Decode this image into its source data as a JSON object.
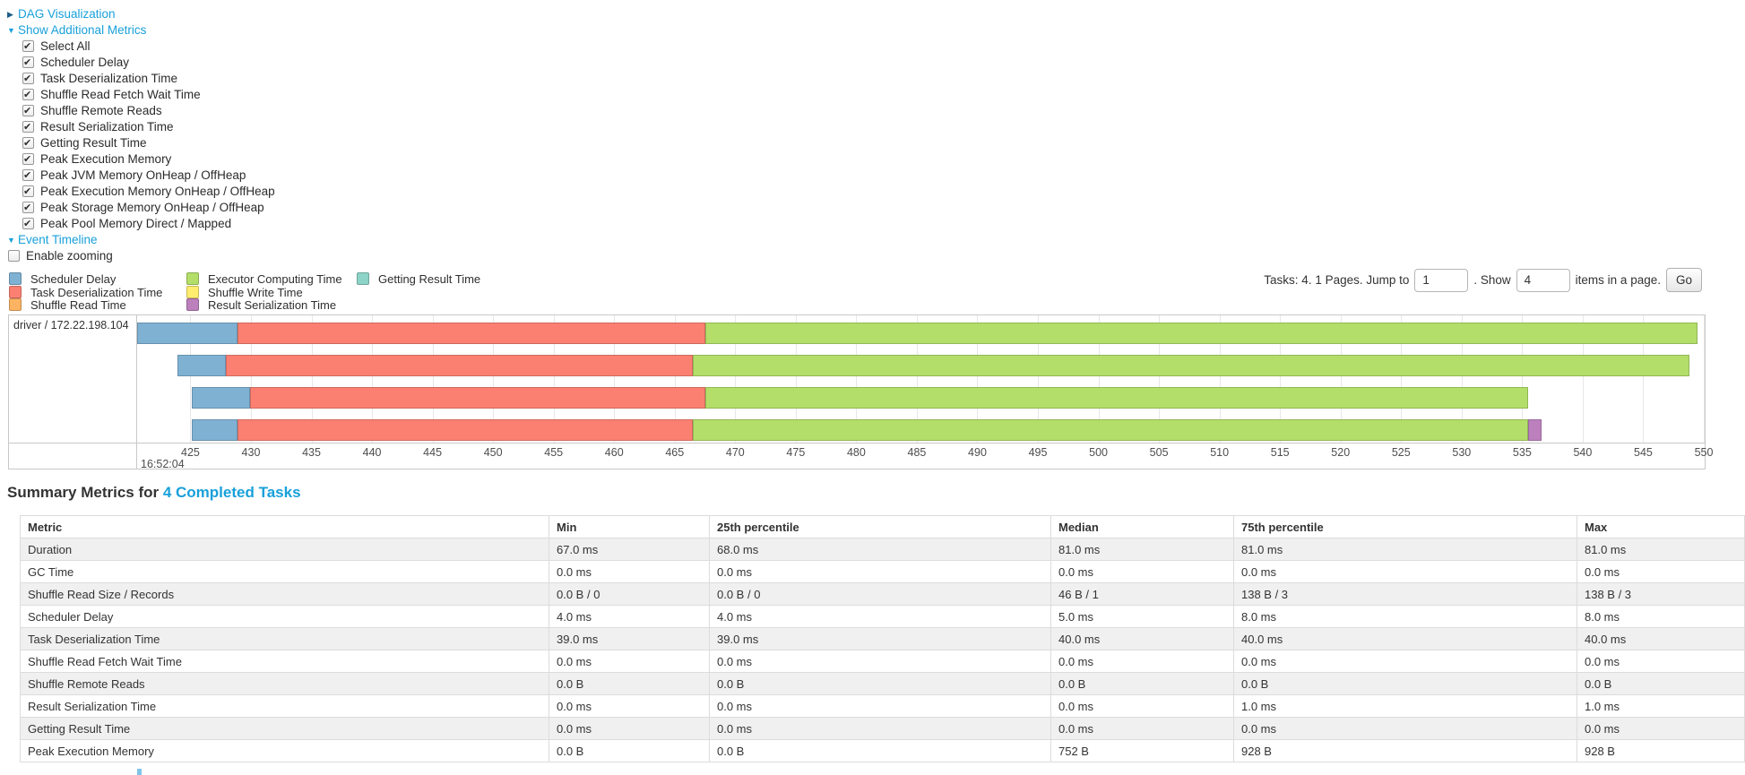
{
  "toggles": {
    "dag": {
      "label": "DAG Visualization",
      "state": "collapsed"
    },
    "additional_metrics": {
      "label": "Show Additional Metrics",
      "state": "expanded"
    },
    "metric_checkboxes": [
      {
        "label": "Select All",
        "checked": true
      },
      {
        "label": "Scheduler Delay",
        "checked": true
      },
      {
        "label": "Task Deserialization Time",
        "checked": true
      },
      {
        "label": "Shuffle Read Fetch Wait Time",
        "checked": true
      },
      {
        "label": "Shuffle Remote Reads",
        "checked": true
      },
      {
        "label": "Result Serialization Time",
        "checked": true
      },
      {
        "label": "Getting Result Time",
        "checked": true
      },
      {
        "label": "Peak Execution Memory",
        "checked": true
      },
      {
        "label": "Peak JVM Memory OnHeap / OffHeap",
        "checked": true
      },
      {
        "label": "Peak Execution Memory OnHeap / OffHeap",
        "checked": true
      },
      {
        "label": "Peak Storage Memory OnHeap / OffHeap",
        "checked": true
      },
      {
        "label": "Peak Pool Memory Direct / Mapped",
        "checked": true
      }
    ],
    "event_timeline": {
      "label": "Event Timeline",
      "state": "expanded"
    },
    "enable_zooming": {
      "label": "Enable zooming",
      "checked": false
    }
  },
  "colors": {
    "scheduler_delay": "#7FB1D3",
    "task_deserialization": "#FB8072",
    "shuffle_read": "#FDB462",
    "executor_computing": "#B3DE69",
    "shuffle_write": "#FFED6F",
    "getting_result": "#8DD3C7",
    "result_serialization": "#BC80BD",
    "link": "#18a0da"
  },
  "legend": {
    "columns": [
      [
        {
          "key": "scheduler_delay",
          "label": "Scheduler Delay"
        },
        {
          "key": "task_deserialization",
          "label": "Task Deserialization Time"
        },
        {
          "key": "shuffle_read",
          "label": "Shuffle Read Time"
        }
      ],
      [
        {
          "key": "executor_computing",
          "label": "Executor Computing Time"
        },
        {
          "key": "shuffle_write",
          "label": "Shuffle Write Time"
        },
        {
          "key": "result_serialization",
          "label": "Result Serialization Time"
        }
      ],
      [
        {
          "key": "getting_result",
          "label": "Getting Result Time"
        }
      ]
    ]
  },
  "pagination": {
    "prefix": "Tasks: 4. 1 Pages. Jump to",
    "jump_value": "1",
    "mid": ". Show",
    "show_value": "4",
    "suffix": "items in a page.",
    "go_label": "Go"
  },
  "chart_data": {
    "type": "timeline",
    "group_label": "driver / 172.22.198.104",
    "axis": {
      "min": 420.6,
      "max": 550,
      "tick_start": 425,
      "tick_step": 5,
      "tick_end": 550,
      "time_label": "16:52:04"
    },
    "tasks": [
      {
        "segments": [
          {
            "key": "scheduler_delay",
            "start": 420.6,
            "end": 428.9
          },
          {
            "key": "task_deserialization",
            "start": 428.9,
            "end": 467.5
          },
          {
            "key": "executor_computing",
            "start": 467.5,
            "end": 549.5
          }
        ]
      },
      {
        "segments": [
          {
            "key": "scheduler_delay",
            "start": 423.9,
            "end": 427.9
          },
          {
            "key": "task_deserialization",
            "start": 427.9,
            "end": 466.5
          },
          {
            "key": "executor_computing",
            "start": 466.5,
            "end": 548.8
          }
        ]
      },
      {
        "segments": [
          {
            "key": "scheduler_delay",
            "start": 425.1,
            "end": 429.9
          },
          {
            "key": "task_deserialization",
            "start": 429.9,
            "end": 467.5
          },
          {
            "key": "executor_computing",
            "start": 467.5,
            "end": 535.5
          }
        ]
      },
      {
        "segments": [
          {
            "key": "scheduler_delay",
            "start": 425.1,
            "end": 428.9
          },
          {
            "key": "task_deserialization",
            "start": 428.9,
            "end": 466.5
          },
          {
            "key": "executor_computing",
            "start": 466.5,
            "end": 535.5
          },
          {
            "key": "result_serialization",
            "start": 535.5,
            "end": 536.6
          }
        ]
      }
    ]
  },
  "summary": {
    "title_prefix": "Summary Metrics for ",
    "title_link": "4 Completed Tasks",
    "table": {
      "columns": [
        "Metric",
        "Min",
        "25th percentile",
        "Median",
        "75th percentile",
        "Max"
      ],
      "rows": [
        [
          "Duration",
          "67.0 ms",
          "68.0 ms",
          "81.0 ms",
          "81.0 ms",
          "81.0 ms"
        ],
        [
          "GC Time",
          "0.0 ms",
          "0.0 ms",
          "0.0 ms",
          "0.0 ms",
          "0.0 ms"
        ],
        [
          "Shuffle Read Size / Records",
          "0.0 B / 0",
          "0.0 B / 0",
          "46 B / 1",
          "138 B / 3",
          "138 B / 3"
        ],
        [
          "Scheduler Delay",
          "4.0 ms",
          "4.0 ms",
          "5.0 ms",
          "8.0 ms",
          "8.0 ms"
        ],
        [
          "Task Deserialization Time",
          "39.0 ms",
          "39.0 ms",
          "40.0 ms",
          "40.0 ms",
          "40.0 ms"
        ],
        [
          "Shuffle Read Fetch Wait Time",
          "0.0 ms",
          "0.0 ms",
          "0.0 ms",
          "0.0 ms",
          "0.0 ms"
        ],
        [
          "Shuffle Remote Reads",
          "0.0 B",
          "0.0 B",
          "0.0 B",
          "0.0 B",
          "0.0 B"
        ],
        [
          "Result Serialization Time",
          "0.0 ms",
          "0.0 ms",
          "0.0 ms",
          "1.0 ms",
          "1.0 ms"
        ],
        [
          "Getting Result Time",
          "0.0 ms",
          "0.0 ms",
          "0.0 ms",
          "0.0 ms",
          "0.0 ms"
        ],
        [
          "Peak Execution Memory",
          "0.0 B",
          "0.0 B",
          "752 B",
          "928 B",
          "928 B"
        ]
      ]
    }
  }
}
